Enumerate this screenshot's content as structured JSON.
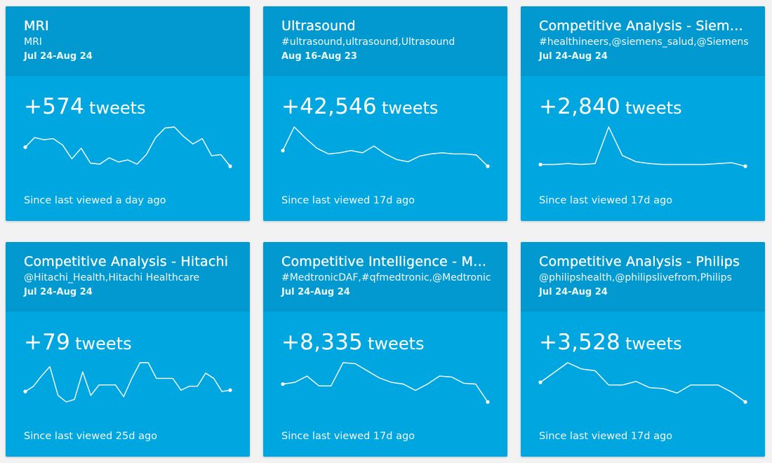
{
  "colors": {
    "card_background": "#00a6e0",
    "card_header_background": "#0199cf",
    "page_background": "#f2f2f2",
    "text": "#ffffff"
  },
  "cards": [
    {
      "title": "MRI",
      "query": "MRI",
      "dates": "Jul 24-Aug 24",
      "count": "+574",
      "unit": "tweets",
      "since": "Since last viewed a day ago",
      "trend": [
        18,
        27,
        25,
        26,
        20,
        7,
        17,
        3,
        2,
        8,
        4,
        6,
        2,
        11,
        27,
        36,
        37,
        28,
        21,
        26,
        10,
        11,
        0
      ]
    },
    {
      "title": "Ultrasound",
      "query": "#ultrasound,ultrasound,Ultrasound",
      "dates": "Aug 16-Aug 23",
      "count": "+42,546",
      "unit": "tweets",
      "since": "Since last viewed 17d ago",
      "trend": [
        16,
        37,
        27,
        18,
        13,
        14,
        16,
        14,
        20,
        13,
        8,
        6,
        11,
        13,
        14,
        13,
        13,
        12,
        2
      ]
    },
    {
      "title": "Competitive Analysis - Siemens",
      "query": "#healthineers,@siemens_salud,@Siemens",
      "dates": "Jul 24-Aug 24",
      "count": "+2,840",
      "unit": "tweets",
      "since": "Since last viewed 17d ago",
      "trend": [
        2,
        2,
        3,
        2,
        3,
        44,
        12,
        5,
        3,
        2,
        2,
        2,
        2,
        3,
        4,
        0
      ]
    },
    {
      "title": "Competitive Analysis - Hitachi",
      "query": "@Hitachi_Health,Hitachi Healthcare",
      "dates": "Jul 24-Aug 24",
      "count": "+79",
      "unit": "tweets",
      "since": "Since last viewed 25d ago",
      "trend": [
        16,
        20,
        28,
        35,
        13,
        8,
        10,
        31,
        13,
        21,
        21,
        21,
        12,
        26,
        38,
        38,
        26,
        26,
        26,
        17,
        20,
        20,
        30,
        26,
        16,
        17
      ]
    },
    {
      "title": "Competitive Intelligence - Medtronic",
      "query": "#MedtronicDAF,#qfmedtronic,@Medtronic",
      "dates": "Jul 24-Aug 24",
      "count": "+8,335",
      "unit": "tweets",
      "since": "Since last viewed 17d ago",
      "trend": [
        20,
        22,
        29,
        18,
        18,
        44,
        43,
        35,
        27,
        22,
        20,
        13,
        20,
        29,
        28,
        21,
        20,
        0
      ]
    },
    {
      "title": "Competitive Analysis - Philips",
      "query": "@philipshealth,@philipslivefrom,Philips",
      "dates": "Jul 24-Aug 24",
      "count": "+3,528",
      "unit": "tweets",
      "since": "Since last viewed 17d ago",
      "trend": [
        22,
        33,
        44,
        37,
        35,
        19,
        19,
        23,
        16,
        15,
        10,
        19,
        19,
        19,
        11,
        0
      ]
    }
  ]
}
